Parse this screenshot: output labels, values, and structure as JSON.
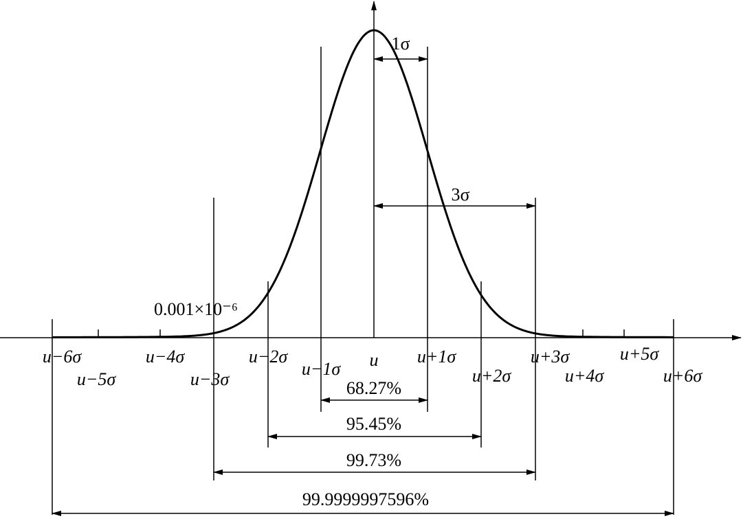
{
  "axis_labels": [
    "u−6σ",
    "u−5σ",
    "u−4σ",
    "u−3σ",
    "u−2σ",
    "u−1σ",
    "u",
    "u+1σ",
    "u+2σ",
    "u+3σ",
    "u+4σ",
    "u+5σ",
    "u+6σ"
  ],
  "spans": [
    "68.27%",
    "95.45%",
    "99.73%",
    "99.9999997596%"
  ],
  "annotations": {
    "one_sigma": "1σ",
    "three_sigma": "3σ",
    "tail": "0.001×10⁻⁶"
  }
}
